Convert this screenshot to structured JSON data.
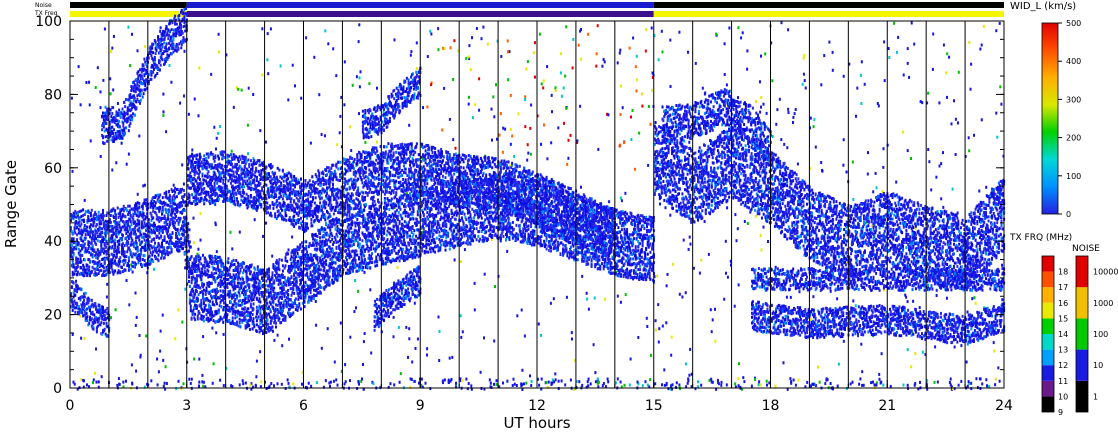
{
  "chart_data": {
    "type": "heatmap",
    "xlabel": "UT hours",
    "ylabel": "Range Gate",
    "xlim": [
      0,
      24
    ],
    "ylim": [
      0,
      100
    ],
    "x_ticks": [
      "0",
      "3",
      "6",
      "9",
      "12",
      "15",
      "18",
      "21",
      "24"
    ],
    "y_ticks": [
      "0",
      "20",
      "40",
      "60",
      "80",
      "100"
    ],
    "vertical_gridlines_hours": [
      1,
      2,
      3,
      4,
      5,
      6,
      7,
      8,
      9,
      10,
      11,
      12,
      13,
      14,
      15,
      16,
      17,
      18,
      19,
      20,
      21,
      22,
      23
    ],
    "top_strip_labels": {
      "noise": "Noise",
      "txfreq": "TX Freq"
    },
    "tx_freq_segments": [
      {
        "from": 0,
        "to": 3,
        "color": "#f5f500"
      },
      {
        "from": 3,
        "to": 15,
        "color": "#3c0f8c"
      },
      {
        "from": 15,
        "to": 24,
        "color": "#f5f500"
      }
    ],
    "noise_strip": [
      {
        "from": 0,
        "to": 3,
        "color": "#000000"
      },
      {
        "from": 3,
        "to": 15,
        "color": "#1a1ad0"
      },
      {
        "from": 15,
        "to": 24,
        "color": "#000000"
      }
    ],
    "main_bands": [
      {
        "name": "band-a",
        "points": [
          [
            0,
            40
          ],
          [
            1,
            40
          ],
          [
            2,
            43
          ],
          [
            2.9,
            47
          ],
          [
            3.1,
            28
          ],
          [
            4,
            27
          ],
          [
            5,
            24
          ],
          [
            5.8,
            30
          ],
          [
            7,
            40
          ],
          [
            8,
            43
          ],
          [
            9,
            45
          ],
          [
            10,
            48
          ],
          [
            11,
            50
          ],
          [
            12,
            48
          ],
          [
            13,
            44
          ],
          [
            14,
            40
          ],
          [
            15,
            38
          ]
        ],
        "thickness": 9
      },
      {
        "name": "band-b",
        "points": [
          [
            3,
            57
          ],
          [
            4,
            58
          ],
          [
            5,
            55
          ],
          [
            6,
            50
          ],
          [
            7,
            56
          ],
          [
            8,
            60
          ],
          [
            9,
            60
          ],
          [
            10,
            57
          ],
          [
            11,
            56
          ],
          [
            12,
            52
          ],
          [
            13,
            47
          ],
          [
            14,
            42
          ]
        ],
        "thickness": 7
      },
      {
        "name": "band-c",
        "points": [
          [
            15,
            63
          ],
          [
            16,
            55
          ],
          [
            17,
            62
          ],
          [
            18,
            55
          ],
          [
            19,
            45
          ],
          [
            20,
            40
          ],
          [
            21,
            44
          ],
          [
            22,
            40
          ],
          [
            23,
            37
          ],
          [
            24,
            48
          ]
        ],
        "thickness": 10
      },
      {
        "name": "band-d",
        "points": [
          [
            0,
            26
          ],
          [
            0.6,
            20
          ],
          [
            1,
            18
          ]
        ],
        "thickness": 4
      },
      {
        "name": "band-e",
        "points": [
          [
            0.8,
            72
          ],
          [
            1.3,
            72
          ],
          [
            2,
            88
          ],
          [
            2.5,
            95
          ],
          [
            3,
            100
          ]
        ],
        "thickness": 5
      },
      {
        "name": "band-f",
        "points": [
          [
            17.5,
            30
          ],
          [
            19,
            30
          ],
          [
            21,
            30
          ],
          [
            23,
            30
          ],
          [
            24,
            30
          ]
        ],
        "thickness": 3
      },
      {
        "name": "band-g",
        "points": [
          [
            17.5,
            20
          ],
          [
            19,
            18
          ],
          [
            21,
            19
          ],
          [
            23,
            16
          ],
          [
            24,
            20
          ]
        ],
        "thickness": 4
      },
      {
        "name": "band-h",
        "points": [
          [
            15.2,
            72
          ],
          [
            16,
            73
          ],
          [
            16.8,
            77
          ],
          [
            17.5,
            72
          ],
          [
            18,
            65
          ]
        ],
        "thickness": 5
      },
      {
        "name": "band-i",
        "points": [
          [
            7.8,
            20
          ],
          [
            8.3,
            25
          ],
          [
            9,
            30
          ]
        ],
        "thickness": 4
      },
      {
        "name": "band-j",
        "points": [
          [
            7.5,
            72
          ],
          [
            8,
            74
          ],
          [
            8.5,
            80
          ],
          [
            9,
            84
          ]
        ],
        "thickness": 4
      }
    ],
    "velocity_width_colorbar": {
      "label": "WID_L (km/s)",
      "ticks": [
        "0",
        "100",
        "200",
        "300",
        "400",
        "500"
      ],
      "stops": [
        "#2222e0",
        "#0090ff",
        "#00d8d8",
        "#00d000",
        "#d8e800",
        "#ffb000",
        "#ff5000",
        "#e00000"
      ]
    },
    "tx_freq_colorbar": {
      "label": "TX FRQ (MHz)",
      "ticks": [
        "9",
        "10",
        "11",
        "12",
        "13",
        "14",
        "15",
        "16",
        "17",
        "18"
      ],
      "colors": [
        "#000000",
        "#6a1a8a",
        "#1a1ae0",
        "#00a0ff",
        "#00d8c8",
        "#00d000",
        "#e8e800",
        "#ffb000",
        "#ff5000",
        "#e00000"
      ]
    },
    "noise_colorbar": {
      "label": "NOISE",
      "ticks": [
        "1",
        "10",
        "100",
        "1000",
        "10000"
      ],
      "colors": [
        "#000000",
        "#1a1ae0",
        "#00c800",
        "#f0c000",
        "#e00000"
      ]
    }
  }
}
